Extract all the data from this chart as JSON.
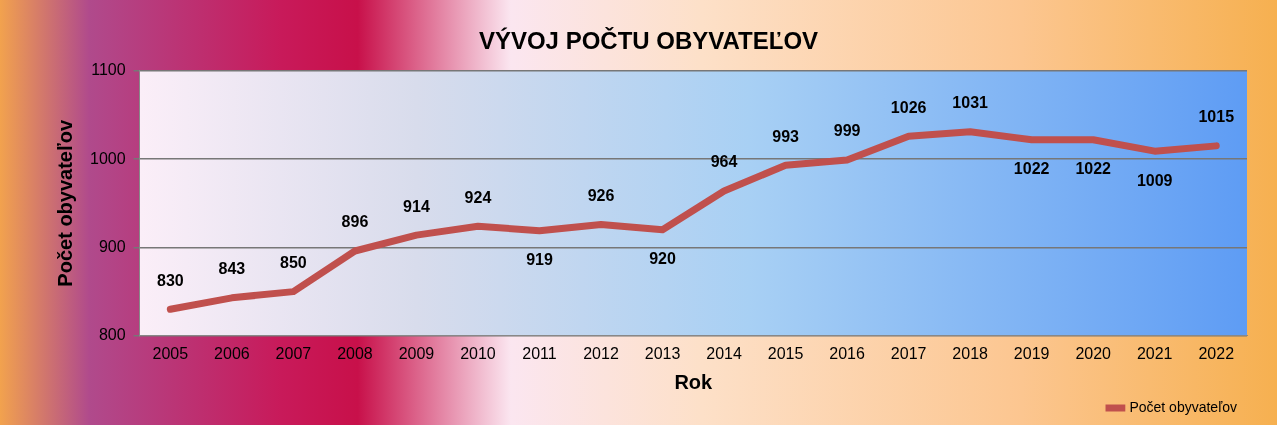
{
  "chart_data": {
    "type": "line",
    "title": "VÝVOJ POČTU OBYVATEĽOV",
    "xlabel": "Rok",
    "ylabel": "Počet obyvateľov",
    "categories": [
      "2005",
      "2006",
      "2007",
      "2008",
      "2009",
      "2010",
      "2011",
      "2012",
      "2013",
      "2014",
      "2015",
      "2016",
      "2017",
      "2018",
      "2019",
      "2020",
      "2021",
      "2022"
    ],
    "series": [
      {
        "name": "Počet obyvateľov",
        "color": "#c0504d",
        "values": [
          830,
          843,
          850,
          896,
          914,
          924,
          919,
          926,
          920,
          964,
          993,
          999,
          1026,
          1031,
          1022,
          1022,
          1009,
          1015
        ]
      }
    ],
    "ylim": [
      800,
      1100
    ],
    "yticks": [
      800,
      900,
      1000,
      1100
    ],
    "grid": "y",
    "legend": "bottom right",
    "data_labels": true
  }
}
